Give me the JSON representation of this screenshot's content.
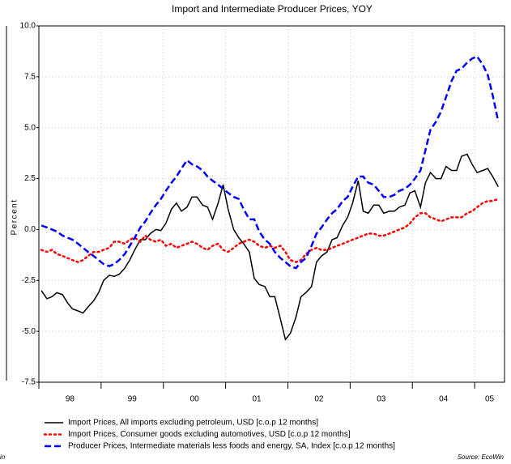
{
  "clipped_text": "in",
  "chart_data": {
    "type": "line",
    "title": "Import and Intermediate Producer Prices, YOY",
    "y_label": "Percent",
    "source": "Source: EcoWin",
    "grid": true,
    "xlim": [
      1998,
      2005.48
    ],
    "xticks": [
      {
        "value": 1998,
        "label": "98"
      },
      {
        "value": 1999,
        "label": "99"
      },
      {
        "value": 2000,
        "label": "00"
      },
      {
        "value": 2001,
        "label": "01"
      },
      {
        "value": 2002,
        "label": "02"
      },
      {
        "value": 2003,
        "label": "03"
      },
      {
        "value": 2004,
        "label": "04"
      },
      {
        "value": 2005,
        "label": "05"
      }
    ],
    "ylim": [
      -7.5,
      10
    ],
    "yticks": [
      {
        "value": 10,
        "label": "10.0"
      },
      7.5,
      {
        "value": 5,
        "label": "5.0"
      },
      2.5,
      {
        "value": 0,
        "label": "0.0"
      },
      -2.5,
      {
        "value": -5,
        "label": "-5.0"
      },
      -7.5
    ],
    "x": [
      1998.04,
      1998.13,
      1998.21,
      1998.29,
      1998.38,
      1998.46,
      1998.54,
      1998.63,
      1998.71,
      1998.79,
      1998.88,
      1998.96,
      1999.04,
      1999.13,
      1999.21,
      1999.29,
      1999.38,
      1999.46,
      1999.54,
      1999.63,
      1999.71,
      1999.79,
      1999.88,
      1999.96,
      2000.04,
      2000.13,
      2000.21,
      2000.29,
      2000.38,
      2000.46,
      2000.54,
      2000.63,
      2000.71,
      2000.79,
      2000.88,
      2000.96,
      2001.04,
      2001.13,
      2001.21,
      2001.29,
      2001.38,
      2001.46,
      2001.54,
      2001.63,
      2001.71,
      2001.79,
      2001.88,
      2001.96,
      2002.04,
      2002.13,
      2002.21,
      2002.29,
      2002.38,
      2002.46,
      2002.54,
      2002.63,
      2002.71,
      2002.79,
      2002.88,
      2002.96,
      2003.04,
      2003.13,
      2003.21,
      2003.29,
      2003.38,
      2003.46,
      2003.54,
      2003.63,
      2003.71,
      2003.79,
      2003.88,
      2003.96,
      2004.04,
      2004.13,
      2004.21,
      2004.29,
      2004.38,
      2004.46,
      2004.54,
      2004.63,
      2004.71,
      2004.79,
      2004.88,
      2004.96,
      2005.04,
      2005.13,
      2005.21,
      2005.29,
      2005.38
    ],
    "series": [
      {
        "name": "Import Prices, All imports excluding petroleum, USD [c.o.p 12 months]",
        "color": "#000000",
        "dash": "solid",
        "values": [
          -3.0,
          -3.4,
          -3.3,
          -3.1,
          -3.2,
          -3.6,
          -3.9,
          -4.0,
          -4.1,
          -3.8,
          -3.5,
          -3.1,
          -2.5,
          -2.25,
          -2.3,
          -2.2,
          -1.9,
          -1.5,
          -1.0,
          -0.5,
          -0.5,
          -0.2,
          0.0,
          -0.05,
          0.3,
          1.0,
          1.3,
          0.9,
          1.1,
          1.6,
          1.6,
          1.2,
          1.1,
          0.5,
          1.3,
          2.2,
          1.0,
          0.0,
          -0.4,
          -0.7,
          -1.1,
          -2.4,
          -2.7,
          -2.8,
          -3.3,
          -3.3,
          -4.4,
          -5.4,
          -5.1,
          -4.3,
          -3.3,
          -3.1,
          -2.8,
          -1.6,
          -1.3,
          -1.1,
          -0.5,
          -0.4,
          0.2,
          0.6,
          1.3,
          2.4,
          0.9,
          0.8,
          1.2,
          1.2,
          0.8,
          0.9,
          0.9,
          1.1,
          1.2,
          1.8,
          1.9,
          1.1,
          2.3,
          2.8,
          2.5,
          2.5,
          3.1,
          2.9,
          2.9,
          3.6,
          3.7,
          3.2,
          2.8,
          2.9,
          3.0,
          2.6,
          2.1
        ]
      },
      {
        "name": "Import Prices, Consumer goods excluding automotives, USD [c.o.p 12 months]",
        "color": "#ff0000",
        "dash": "dotted",
        "values": [
          -1.0,
          -1.1,
          -1.0,
          -1.2,
          -1.3,
          -1.4,
          -1.5,
          -1.6,
          -1.5,
          -1.3,
          -1.1,
          -1.1,
          -1.0,
          -0.9,
          -0.6,
          -0.6,
          -0.7,
          -0.5,
          -0.4,
          -0.6,
          -0.3,
          -0.5,
          -0.6,
          -0.5,
          -0.8,
          -0.7,
          -0.9,
          -0.8,
          -0.7,
          -0.6,
          -0.7,
          -0.9,
          -1.0,
          -0.8,
          -0.7,
          -1.0,
          -1.1,
          -0.9,
          -0.7,
          -0.6,
          -0.5,
          -0.6,
          -0.8,
          -0.9,
          -0.8,
          -0.9,
          -0.8,
          -1.1,
          -1.5,
          -1.6,
          -1.5,
          -1.2,
          -1.0,
          -0.9,
          -1.0,
          -1.0,
          -0.9,
          -0.8,
          -0.7,
          -0.6,
          -0.5,
          -0.4,
          -0.3,
          -0.2,
          -0.2,
          -0.3,
          -0.3,
          -0.2,
          -0.1,
          0.0,
          0.1,
          0.3,
          0.6,
          0.8,
          0.8,
          0.6,
          0.5,
          0.4,
          0.5,
          0.6,
          0.6,
          0.6,
          0.8,
          0.9,
          1.1,
          1.3,
          1.4,
          1.4,
          1.5
        ]
      },
      {
        "name": "Producer Prices, Intermediate materials less foods and energy, SA, Index [c.o.p 12 months]",
        "color": "#0000ff",
        "dash": "dashed",
        "values": [
          0.2,
          0.1,
          0.0,
          -0.1,
          -0.3,
          -0.4,
          -0.5,
          -0.7,
          -0.9,
          -1.1,
          -1.3,
          -1.5,
          -1.7,
          -1.8,
          -1.7,
          -1.5,
          -1.2,
          -0.8,
          -0.4,
          0.1,
          0.4,
          0.8,
          1.2,
          1.5,
          1.9,
          2.3,
          2.6,
          3.0,
          3.4,
          3.2,
          3.1,
          2.9,
          2.6,
          2.4,
          2.2,
          2.0,
          1.8,
          1.6,
          1.5,
          1.0,
          0.5,
          0.5,
          -0.1,
          -0.5,
          -0.7,
          -1.1,
          -1.4,
          -1.6,
          -1.8,
          -1.9,
          -1.6,
          -1.4,
          -0.8,
          -0.2,
          0.1,
          0.5,
          0.8,
          1.0,
          1.4,
          1.6,
          2.1,
          2.6,
          2.6,
          2.3,
          2.2,
          1.9,
          1.6,
          1.6,
          1.7,
          1.9,
          2.0,
          2.2,
          2.5,
          2.9,
          3.9,
          4.9,
          5.3,
          5.8,
          6.5,
          7.3,
          7.8,
          7.9,
          8.2,
          8.4,
          8.5,
          8.1,
          7.6,
          6.6,
          5.3
        ]
      }
    ]
  }
}
